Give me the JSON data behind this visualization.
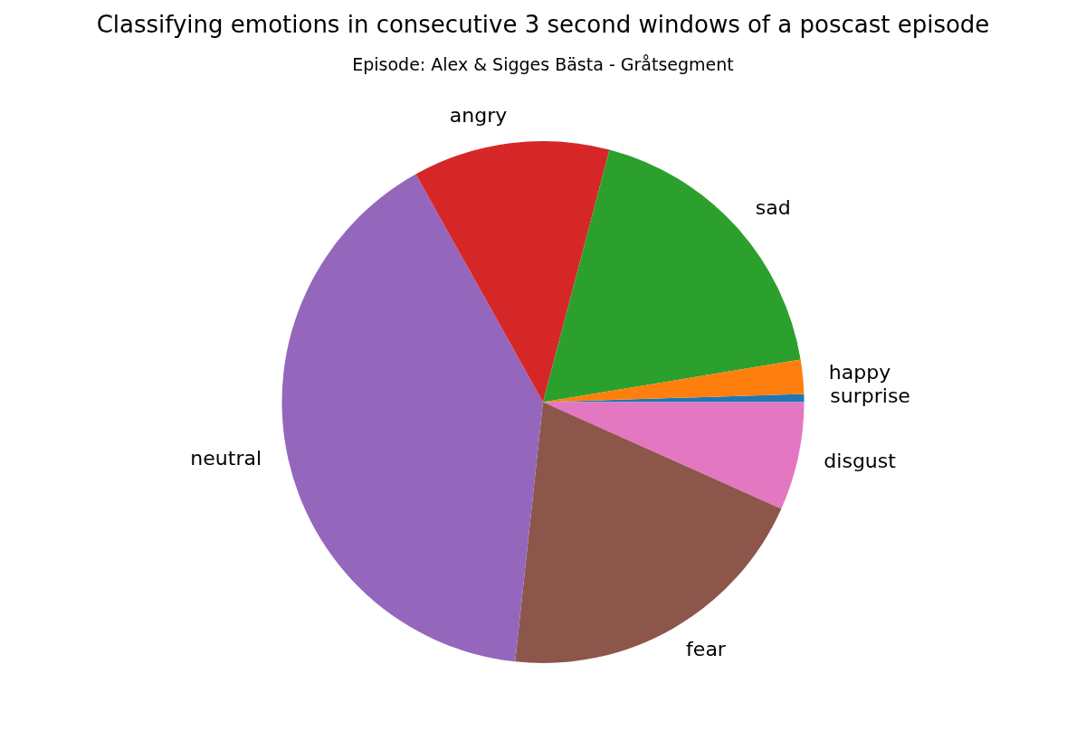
{
  "chart_data": {
    "type": "pie",
    "title": "Classifying emotions in consecutive 3 second windows of a poscast episode",
    "subtitle": "Episode: Alex & Sigges Bästa - Gråtsegment",
    "categories": [
      "surprise",
      "disgust",
      "fear",
      "neutral",
      "angry",
      "sad",
      "happy"
    ],
    "values": [
      0.5,
      6.7,
      20,
      40.2,
      12.2,
      18.3,
      2.1
    ],
    "colors": [
      "#1f77b4",
      "#e377c2",
      "#8c564b",
      "#9467bd",
      "#d62728",
      "#2ca02c",
      "#ff7f0e"
    ]
  }
}
